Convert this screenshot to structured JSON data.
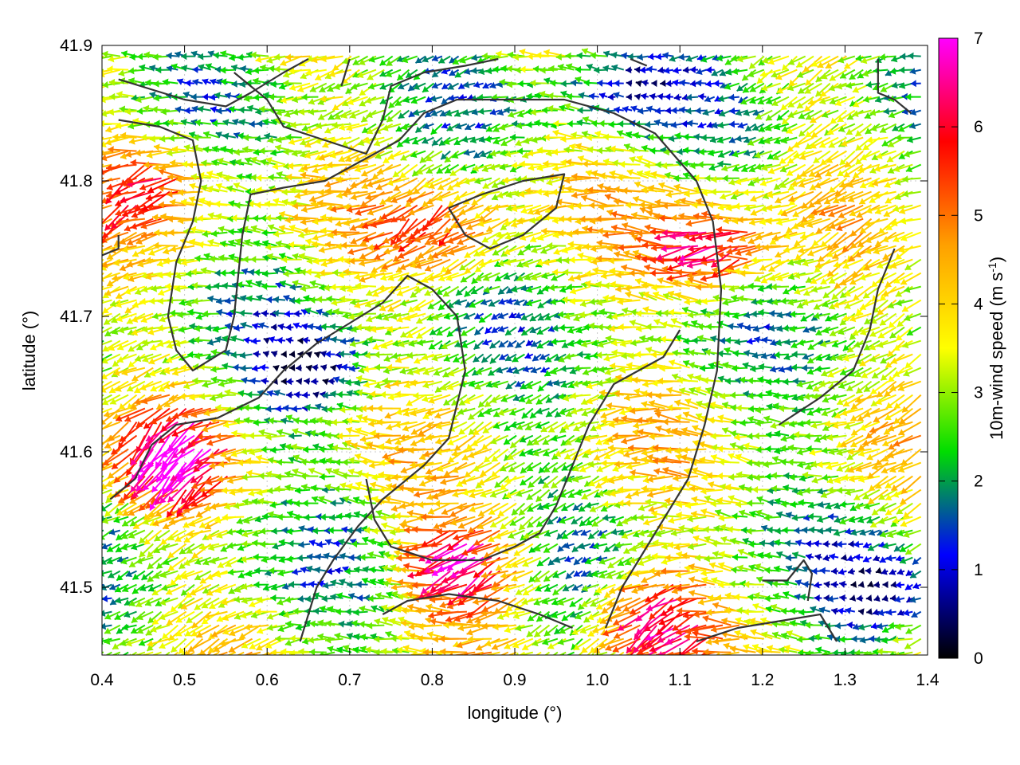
{
  "chart_data": {
    "type": "vector-field",
    "xlabel": "longitude (°)",
    "ylabel": "latitude (°)",
    "colorbar_label_main": "10m-wind speed (m s",
    "colorbar_label_sup": "-1",
    "colorbar_label_end": ")",
    "xlim": [
      0.4,
      1.4
    ],
    "ylim": [
      41.45,
      41.9
    ],
    "x_ticks": [
      "0.4",
      "0.5",
      "0.6",
      "0.7",
      "0.8",
      "0.9",
      "1.0",
      "1.1",
      "1.2",
      "1.3",
      "1.4"
    ],
    "x_tick_values": [
      0.4,
      0.5,
      0.6,
      0.7,
      0.8,
      0.9,
      1.0,
      1.1,
      1.2,
      1.3,
      1.4
    ],
    "y_ticks": [
      "41.5",
      "41.6",
      "41.7",
      "41.8",
      "41.9"
    ],
    "y_tick_values": [
      41.5,
      41.6,
      41.7,
      41.8,
      41.9
    ],
    "colorbar_range": [
      0,
      7
    ],
    "colorbar_ticks": [
      "0",
      "1",
      "2",
      "3",
      "4",
      "5",
      "6",
      "7"
    ],
    "colorbar_tick_values": [
      0,
      1,
      2,
      3,
      4,
      5,
      6,
      7
    ],
    "colormap": [
      "#000000",
      "#0000ff",
      "#00dd00",
      "#ffff00",
      "#ffa000",
      "#ff0000",
      "#ff00ff"
    ],
    "grid": true,
    "grid_color": "#c8c8c8",
    "contour_color": "#333333",
    "wind_grid_step_deg": 0.01,
    "wind_regions": [
      {
        "name": "strong-northwest",
        "lon": 0.48,
        "lat": 41.8,
        "speed": 5.2
      },
      {
        "name": "strong-southwest",
        "lon": 0.5,
        "lat": 41.6,
        "speed": 6.2
      },
      {
        "name": "strong-center",
        "lon": 0.83,
        "lat": 41.77,
        "speed": 5.3
      },
      {
        "name": "strong-east",
        "lon": 1.15,
        "lat": 41.75,
        "speed": 6.6
      },
      {
        "name": "strong-south",
        "lon": 0.85,
        "lat": 41.52,
        "speed": 6.5
      },
      {
        "name": "strong-southeast",
        "lon": 1.08,
        "lat": 41.48,
        "speed": 6.4
      },
      {
        "name": "calm-west",
        "lon": 0.66,
        "lat": 41.66,
        "speed": 1.0
      },
      {
        "name": "calm-northeast",
        "lon": 1.03,
        "lat": 41.87,
        "speed": 1.2
      },
      {
        "name": "calm-southeast",
        "lon": 1.36,
        "lat": 41.5,
        "speed": 0.9
      }
    ],
    "contours": [
      [
        [
          0.42,
          41.875
        ],
        [
          0.5,
          41.86
        ],
        [
          0.55,
          41.855
        ],
        [
          0.58,
          41.865
        ],
        [
          0.62,
          41.88
        ],
        [
          0.65,
          41.89
        ]
      ],
      [
        [
          0.42,
          41.845
        ],
        [
          0.47,
          41.84
        ],
        [
          0.51,
          41.83
        ],
        [
          0.52,
          41.8
        ],
        [
          0.51,
          41.77
        ],
        [
          0.49,
          41.74
        ],
        [
          0.48,
          41.7
        ],
        [
          0.49,
          41.675
        ],
        [
          0.51,
          41.66
        ],
        [
          0.55,
          41.675
        ],
        [
          0.56,
          41.7
        ],
        [
          0.57,
          41.76
        ],
        [
          0.58,
          41.79
        ],
        [
          0.62,
          41.795
        ],
        [
          0.67,
          41.8
        ],
        [
          0.73,
          41.82
        ],
        [
          0.76,
          41.83
        ],
        [
          0.79,
          41.85
        ],
        [
          0.83,
          41.86
        ],
        [
          0.9,
          41.86
        ],
        [
          0.96,
          41.86
        ],
        [
          1.02,
          41.85
        ],
        [
          1.07,
          41.835
        ],
        [
          1.12,
          41.8
        ],
        [
          1.14,
          41.77
        ],
        [
          1.15,
          41.72
        ],
        [
          1.145,
          41.66
        ],
        [
          1.13,
          41.62
        ],
        [
          1.11,
          41.58
        ],
        [
          1.07,
          41.54
        ],
        [
          1.03,
          41.5
        ],
        [
          1.01,
          41.47
        ]
      ],
      [
        [
          0.56,
          41.88
        ],
        [
          0.6,
          41.86
        ],
        [
          0.62,
          41.84
        ],
        [
          0.67,
          41.83
        ],
        [
          0.72,
          41.82
        ],
        [
          0.74,
          41.845
        ],
        [
          0.75,
          41.87
        ],
        [
          0.79,
          41.88
        ],
        [
          0.84,
          41.885
        ],
        [
          0.88,
          41.89
        ]
      ],
      [
        [
          0.42,
          41.76
        ],
        [
          0.42,
          41.75
        ],
        [
          0.4,
          41.745
        ]
      ],
      [
        [
          0.41,
          41.565
        ],
        [
          0.44,
          41.58
        ],
        [
          0.46,
          41.605
        ],
        [
          0.49,
          41.62
        ],
        [
          0.54,
          41.625
        ],
        [
          0.59,
          41.64
        ],
        [
          0.62,
          41.66
        ],
        [
          0.66,
          41.68
        ],
        [
          0.7,
          41.695
        ],
        [
          0.74,
          41.71
        ],
        [
          0.77,
          41.73
        ],
        [
          0.8,
          41.72
        ],
        [
          0.83,
          41.7
        ],
        [
          0.84,
          41.66
        ],
        [
          0.82,
          41.61
        ],
        [
          0.79,
          41.59
        ],
        [
          0.74,
          41.565
        ],
        [
          0.71,
          41.545
        ],
        [
          0.68,
          41.52
        ],
        [
          0.66,
          41.5
        ],
        [
          0.65,
          41.48
        ],
        [
          0.64,
          41.46
        ]
      ],
      [
        [
          0.82,
          41.78
        ],
        [
          0.86,
          41.79
        ],
        [
          0.91,
          41.8
        ],
        [
          0.96,
          41.805
        ],
        [
          0.95,
          41.78
        ],
        [
          0.91,
          41.76
        ],
        [
          0.87,
          41.75
        ],
        [
          0.84,
          41.76
        ],
        [
          0.82,
          41.78
        ]
      ],
      [
        [
          0.72,
          41.58
        ],
        [
          0.73,
          41.55
        ],
        [
          0.75,
          41.53
        ],
        [
          0.8,
          41.52
        ],
        [
          0.86,
          41.52
        ],
        [
          0.9,
          41.53
        ],
        [
          0.93,
          41.54
        ],
        [
          0.95,
          41.56
        ],
        [
          0.97,
          41.59
        ],
        [
          0.99,
          41.62
        ],
        [
          1.02,
          41.65
        ],
        [
          1.05,
          41.66
        ],
        [
          1.08,
          41.67
        ],
        [
          1.1,
          41.69
        ]
      ],
      [
        [
          0.74,
          41.48
        ],
        [
          0.77,
          41.49
        ],
        [
          0.82,
          41.495
        ],
        [
          0.88,
          41.49
        ],
        [
          0.93,
          41.48
        ],
        [
          0.97,
          41.47
        ]
      ],
      [
        [
          1.12,
          41.46
        ],
        [
          1.17,
          41.47
        ],
        [
          1.22,
          41.475
        ],
        [
          1.27,
          41.48
        ],
        [
          1.29,
          41.46
        ]
      ],
      [
        [
          1.2,
          41.505
        ],
        [
          1.23,
          41.505
        ],
        [
          1.25,
          41.52
        ],
        [
          1.26,
          41.51
        ],
        [
          1.255,
          41.49
        ]
      ],
      [
        [
          1.22,
          41.62
        ],
        [
          1.27,
          41.64
        ],
        [
          1.31,
          41.66
        ],
        [
          1.33,
          41.69
        ],
        [
          1.34,
          41.72
        ],
        [
          1.36,
          41.75
        ]
      ],
      [
        [
          1.34,
          41.89
        ],
        [
          1.34,
          41.865
        ],
        [
          1.36,
          41.86
        ],
        [
          1.38,
          41.85
        ]
      ],
      [
        [
          1.04,
          41.89
        ],
        [
          1.06,
          41.885
        ]
      ],
      [
        [
          0.69,
          41.87
        ],
        [
          0.7,
          41.89
        ]
      ]
    ]
  }
}
